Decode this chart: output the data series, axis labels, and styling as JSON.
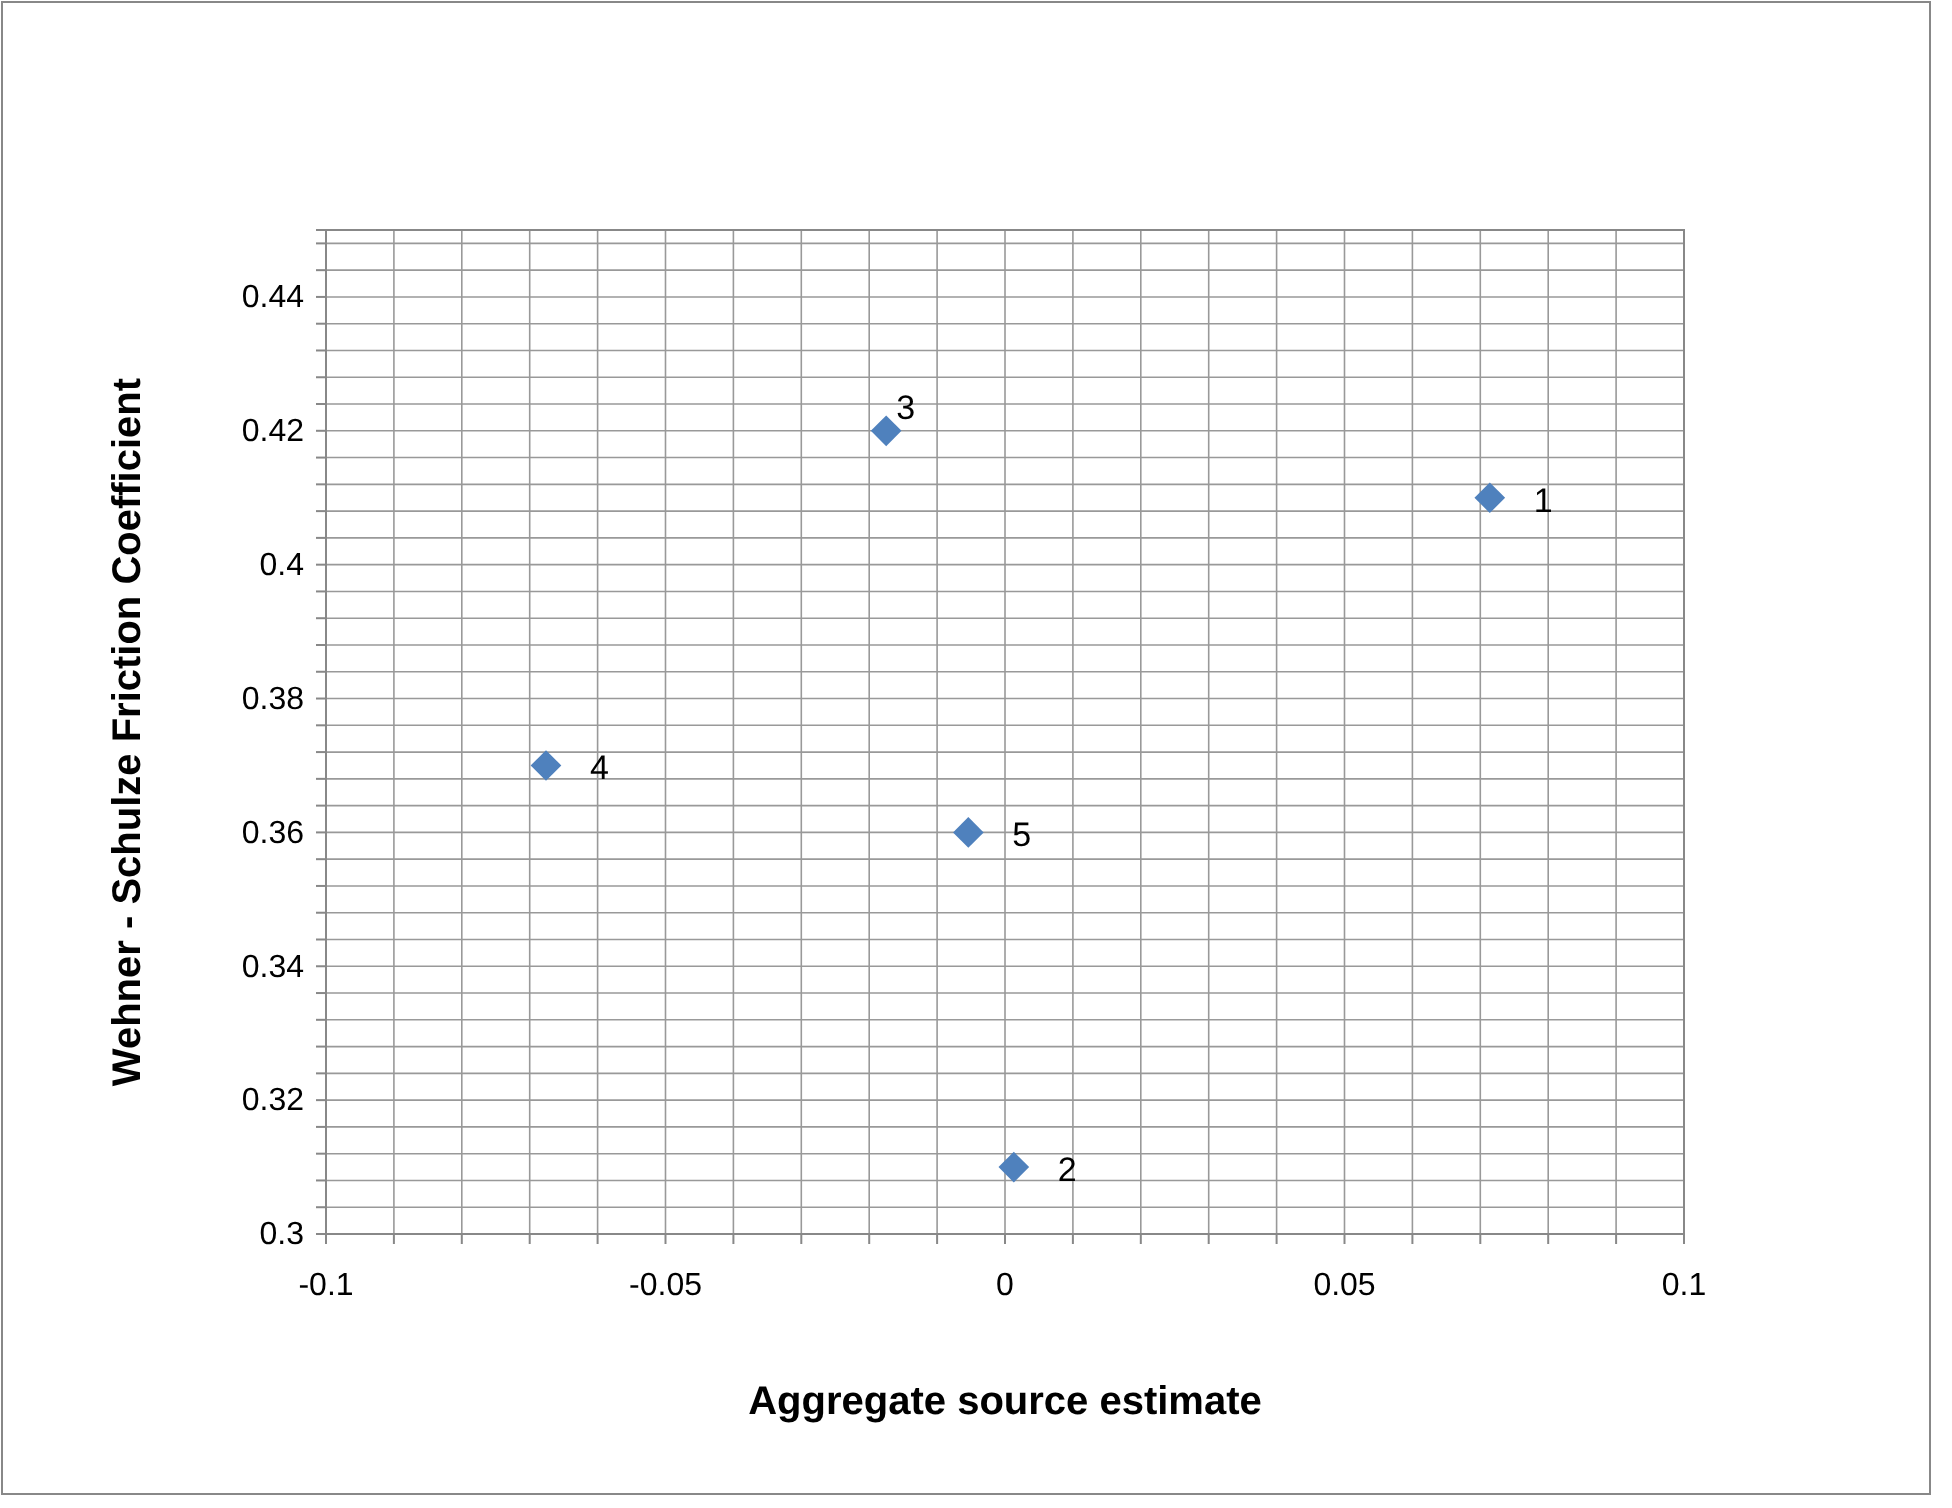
{
  "chart_data": {
    "type": "scatter",
    "xlabel": "Aggregate source estimate",
    "ylabel": "Wehner - Schulze Friction Coefficient",
    "x": [
      0.0714,
      0.0013,
      -0.0175,
      -0.0676,
      -0.0054
    ],
    "series": [
      {
        "color": "#4f81bd",
        "values": [
          0.41,
          0.31,
          0.42,
          0.37,
          0.36
        ]
      }
    ],
    "marker": "diamond",
    "grid": true,
    "xlim": [
      -0.1,
      0.1
    ],
    "xticks": [
      -0.1,
      {
        "value": -0.09,
        "label": null
      },
      {
        "value": -0.08,
        "label": null
      },
      {
        "value": -0.07,
        "label": null
      },
      {
        "value": -0.06,
        "label": null
      },
      -0.05,
      {
        "value": -0.04,
        "label": null
      },
      {
        "value": -0.03,
        "label": null
      },
      {
        "value": -0.02,
        "label": null
      },
      {
        "value": -0.01,
        "label": null
      },
      0,
      {
        "value": 0.01,
        "label": null
      },
      {
        "value": 0.02,
        "label": null
      },
      {
        "value": 0.03,
        "label": null
      },
      {
        "value": 0.04,
        "label": null
      },
      0.05,
      {
        "value": 0.06,
        "label": null
      },
      {
        "value": 0.07,
        "label": null
      },
      {
        "value": 0.08,
        "label": null
      },
      {
        "value": 0.09,
        "label": null
      },
      0.1
    ],
    "ylim": [
      0.3,
      0.45
    ],
    "yticks": [
      0.3,
      {
        "value": 0.304,
        "label": null
      },
      {
        "value": 0.308,
        "label": null
      },
      {
        "value": 0.312,
        "label": null
      },
      {
        "value": 0.316,
        "label": null
      },
      0.32,
      {
        "value": 0.324,
        "label": null
      },
      {
        "value": 0.328,
        "label": null
      },
      {
        "value": 0.332,
        "label": null
      },
      {
        "value": 0.336,
        "label": null
      },
      0.34,
      {
        "value": 0.344,
        "label": null
      },
      {
        "value": 0.348,
        "label": null
      },
      {
        "value": 0.352,
        "label": null
      },
      {
        "value": 0.356,
        "label": null
      },
      0.36,
      {
        "value": 0.364,
        "label": null
      },
      {
        "value": 0.368,
        "label": null
      },
      {
        "value": 0.372,
        "label": null
      },
      {
        "value": 0.376,
        "label": null
      },
      0.38,
      {
        "value": 0.384,
        "label": null
      },
      {
        "value": 0.388,
        "label": null
      },
      {
        "value": 0.392,
        "label": null
      },
      {
        "value": 0.396,
        "label": null
      },
      0.4,
      {
        "value": 0.404,
        "label": null
      },
      {
        "value": 0.408,
        "label": null
      },
      {
        "value": 0.412,
        "label": null
      },
      {
        "value": 0.416,
        "label": null
      },
      0.42,
      {
        "value": 0.424,
        "label": null
      },
      {
        "value": 0.428,
        "label": null
      },
      {
        "value": 0.432,
        "label": null
      },
      {
        "value": 0.436,
        "label": null
      },
      0.44,
      {
        "value": 0.444,
        "label": null
      },
      {
        "value": 0.448,
        "label": null
      }
    ],
    "annotations": [
      {
        "text": "1",
        "x": 0.0714,
        "y": 0.41
      },
      {
        "text": "2",
        "x": 0.0013,
        "y": 0.31
      },
      {
        "text": "3",
        "x": -0.0175,
        "y": 0.42
      },
      {
        "text": "4",
        "x": -0.0676,
        "y": 0.37
      },
      {
        "text": "5",
        "x": -0.0054,
        "y": 0.36
      }
    ]
  }
}
